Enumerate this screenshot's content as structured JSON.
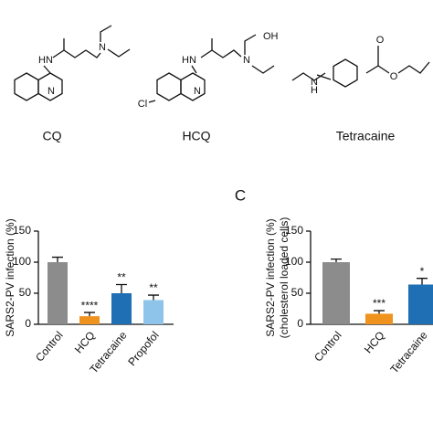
{
  "structures": [
    {
      "name": "CQ",
      "atoms": [
        "HN",
        "N",
        "N"
      ]
    },
    {
      "name": "HCQ",
      "atoms": [
        "HN",
        "N",
        "N",
        "OH",
        "Cl"
      ]
    },
    {
      "name": "Tetracaine",
      "atoms": [
        "H",
        "N",
        "O",
        "O"
      ]
    }
  ],
  "panel_label": "C",
  "chart_data": [
    {
      "type": "bar",
      "ylabel": [
        "SARS2-PV infection (%)"
      ],
      "categories": [
        "Control",
        "HCQ",
        "Tetracaine",
        "Propofol"
      ],
      "values": [
        100,
        13,
        50,
        39
      ],
      "errors": [
        8,
        6,
        14,
        8
      ],
      "significance": [
        null,
        "****",
        "**",
        "**"
      ],
      "colors": [
        "#8c8c8c",
        "#f0921e",
        "#1f6fb5",
        "#8fc4ea"
      ],
      "ylim": [
        0,
        150
      ],
      "yticks": [
        0,
        50,
        100,
        150
      ]
    },
    {
      "type": "bar",
      "ylabel": [
        "SARS2-PV infection (%)",
        "(cholesterol loaded cells)"
      ],
      "categories": [
        "Control",
        "HCQ",
        "Tetracaine"
      ],
      "values": [
        100,
        17,
        64
      ],
      "errors": [
        5,
        5,
        10
      ],
      "significance": [
        null,
        "***",
        "*"
      ],
      "colors": [
        "#8c8c8c",
        "#f0921e",
        "#1f6fb5"
      ],
      "ylim": [
        0,
        150
      ],
      "yticks": [
        0,
        50,
        100,
        150
      ]
    }
  ]
}
